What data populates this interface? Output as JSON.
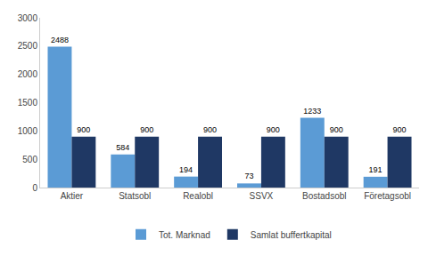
{
  "chart_data": {
    "type": "bar",
    "categories": [
      "Aktier",
      "Statsobl",
      "Realobl",
      "SSVX",
      "Bostadsobl",
      "Företagsobl"
    ],
    "series": [
      {
        "name": "Tot. Marknad",
        "color": "#5b9bd5",
        "values": [
          2488,
          584,
          194,
          73,
          1233,
          191
        ]
      },
      {
        "name": "Samlat buffertkapital",
        "color": "#1f3864",
        "values": [
          900,
          900,
          900,
          900,
          900,
          900
        ]
      }
    ],
    "ylim": [
      0,
      3000
    ],
    "yticks": [
      0,
      500,
      1000,
      1500,
      2000,
      2500,
      3000
    ],
    "grid": false,
    "legend": "bottom",
    "data_labels": true
  }
}
